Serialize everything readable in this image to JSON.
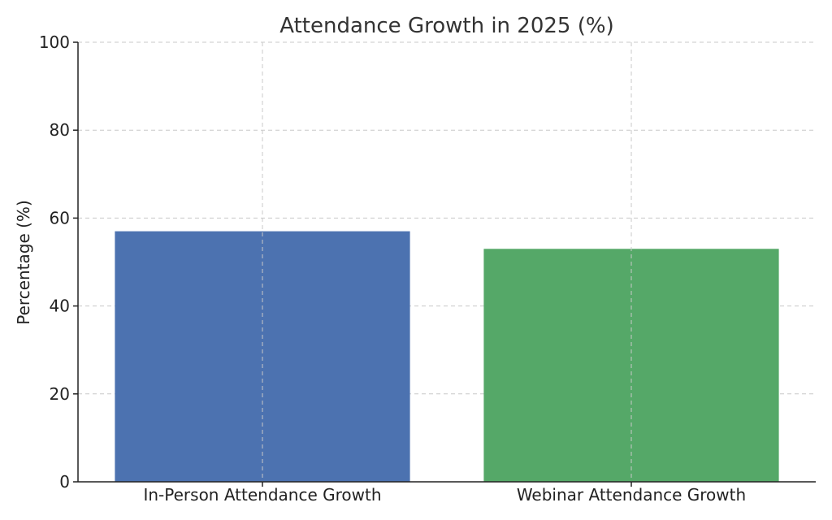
{
  "chart_data": {
    "type": "bar",
    "title": "Attendance Growth in 2025 (%)",
    "xlabel": "",
    "ylabel": "Percentage (%)",
    "categories": [
      "In-Person Attendance Growth",
      "Webinar Attendance Growth"
    ],
    "values": [
      57,
      53
    ],
    "colors": [
      "#4c72b0",
      "#55a868"
    ],
    "ylim": [
      0,
      100
    ],
    "yticks": [
      "0",
      "20",
      "40",
      "60",
      "80",
      "100"
    ],
    "ytick_values": [
      0,
      20,
      40,
      60,
      80,
      100
    ],
    "grid": true
  }
}
